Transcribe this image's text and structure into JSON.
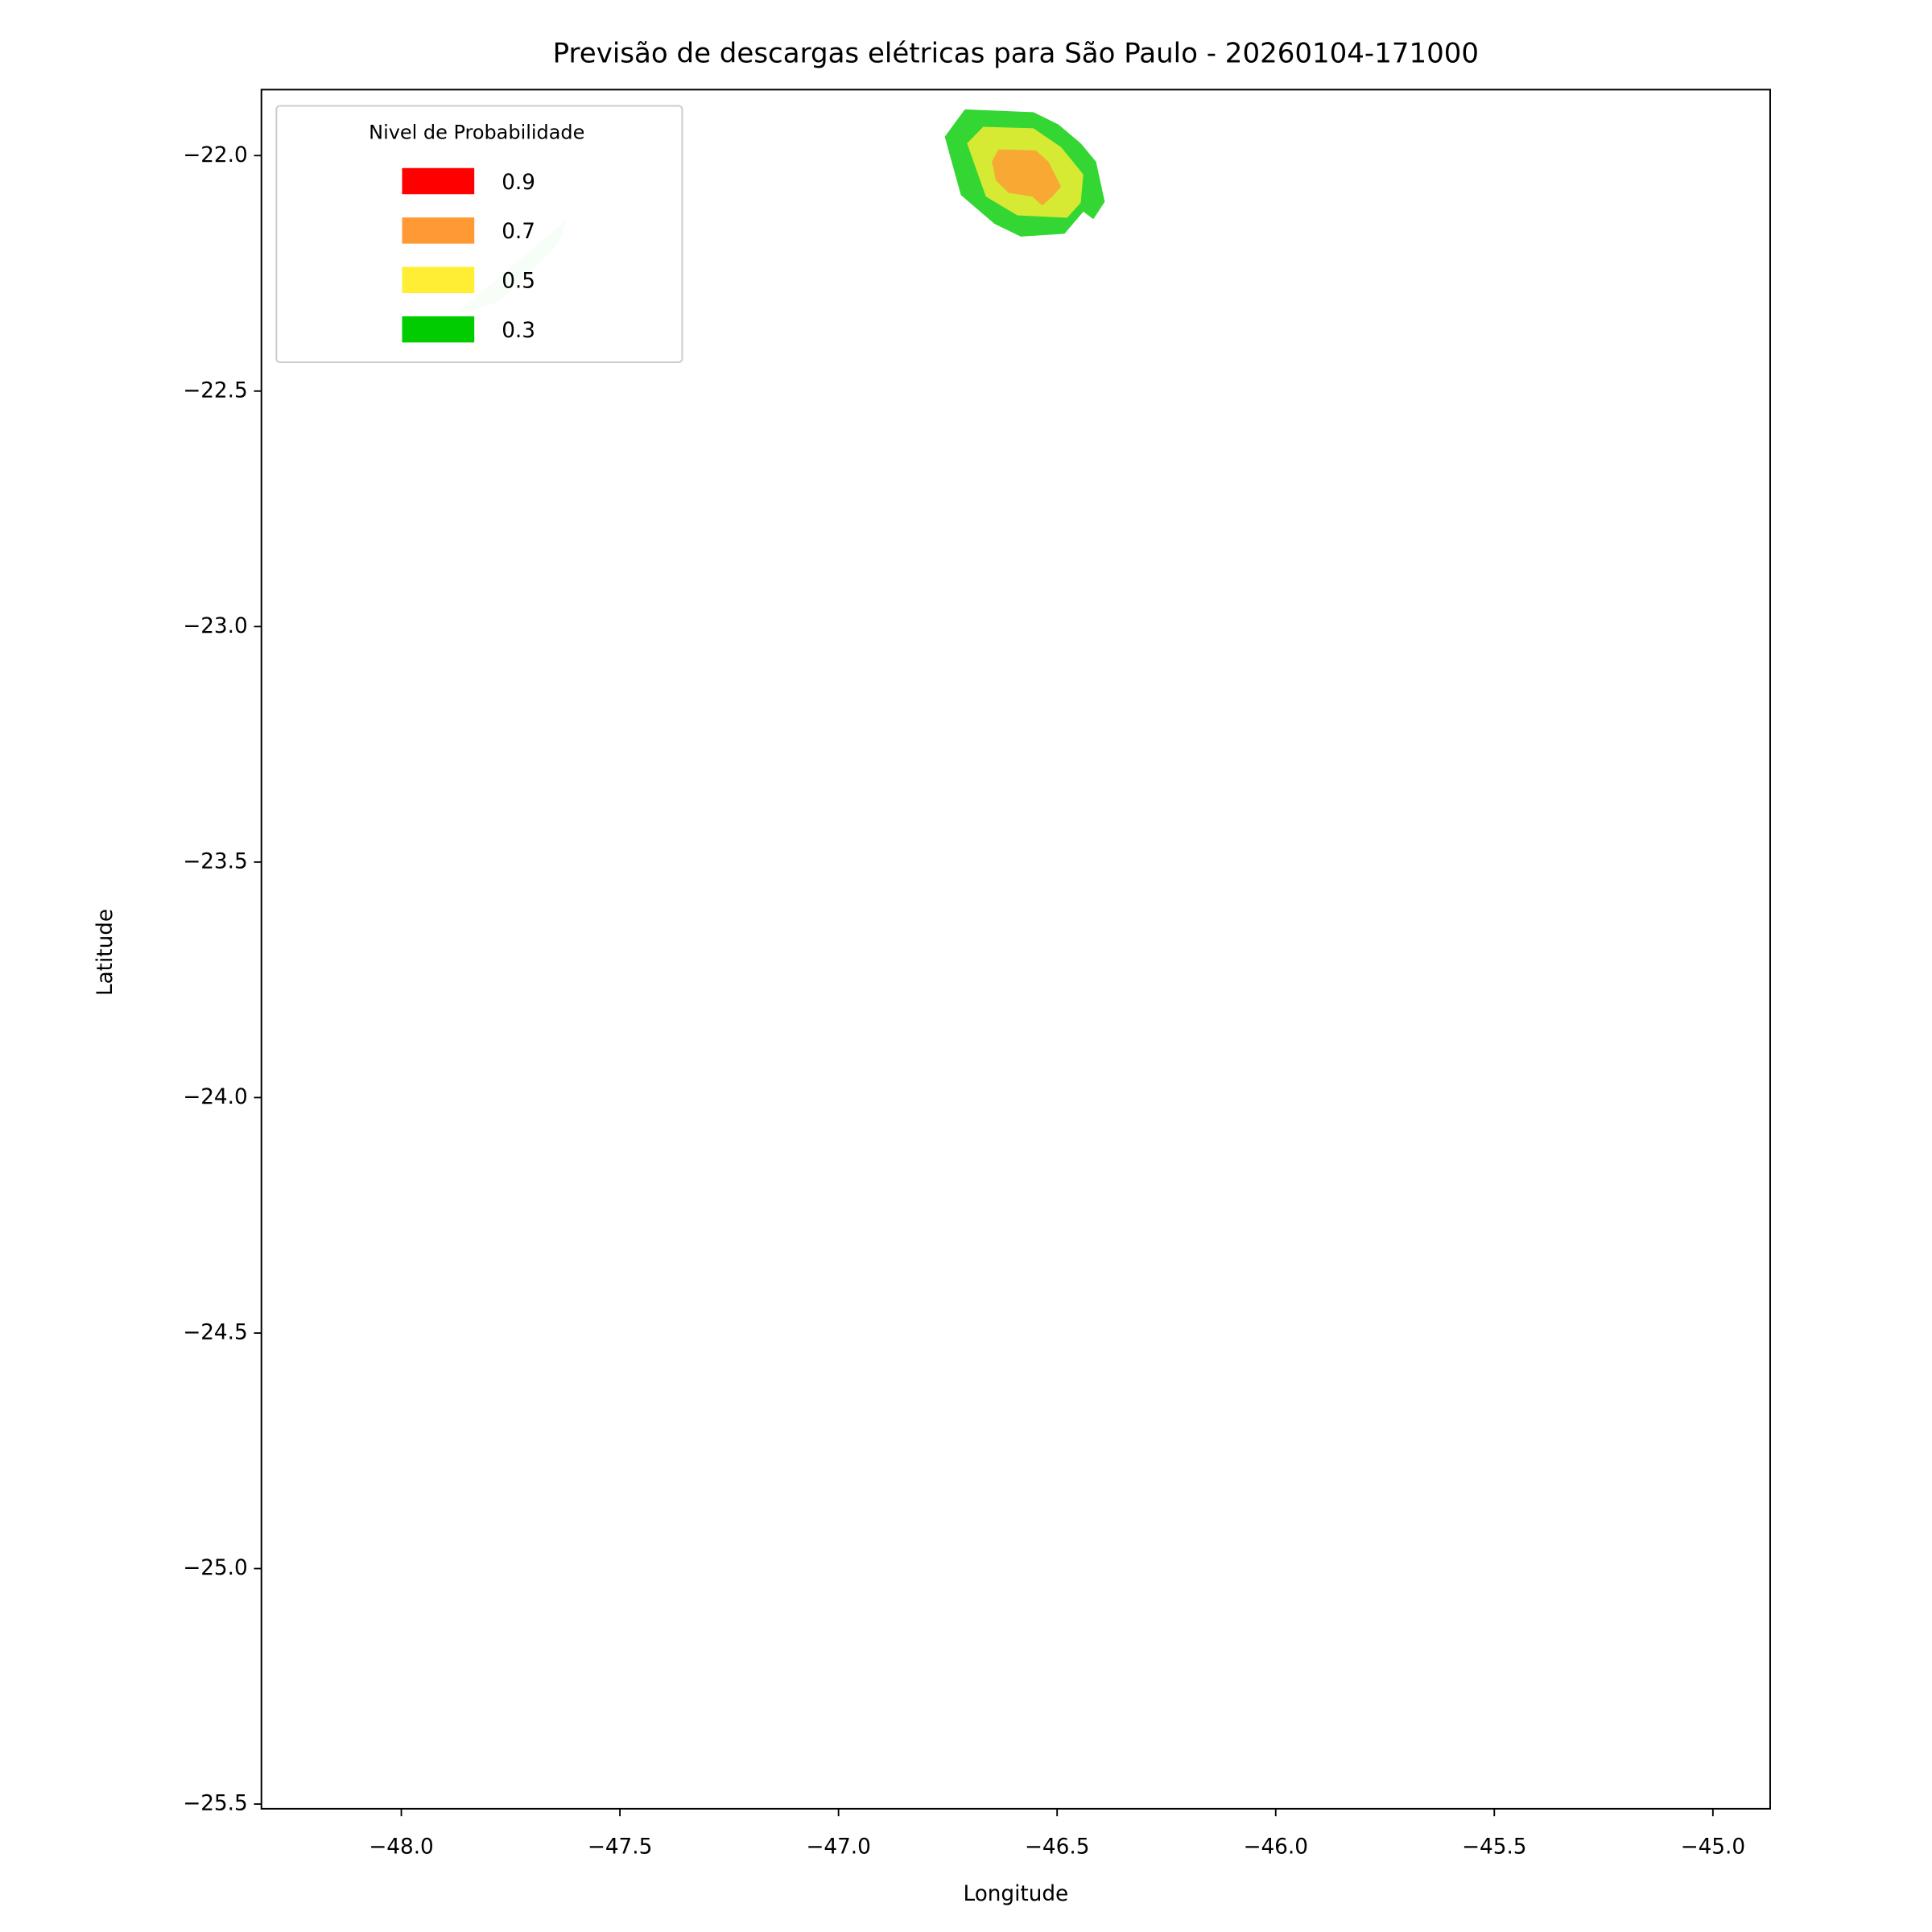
{
  "chart_data": {
    "type": "contourf",
    "title": "Previsão de descargas elétricas para São Paulo - 20260104-171000",
    "xlabel": "Longitude",
    "ylabel": "Latitude",
    "xlim": [
      -48.32,
      -44.869
    ],
    "ylim": [
      -25.51,
      -21.86
    ],
    "xticks": [
      {
        "value": -48.0,
        "label": "−48.0"
      },
      {
        "value": -47.5,
        "label": "−47.5"
      },
      {
        "value": -47.0,
        "label": "−47.0"
      },
      {
        "value": -46.5,
        "label": "−46.5"
      },
      {
        "value": -46.0,
        "label": "−46.0"
      },
      {
        "value": -45.5,
        "label": "−45.5"
      },
      {
        "value": -45.0,
        "label": "−45.0"
      }
    ],
    "yticks": [
      {
        "value": -22.0,
        "label": "−22.0"
      },
      {
        "value": -22.5,
        "label": "−22.5"
      },
      {
        "value": -23.0,
        "label": "−23.0"
      },
      {
        "value": -23.5,
        "label": "−23.5"
      },
      {
        "value": -24.0,
        "label": "−24.0"
      },
      {
        "value": -24.5,
        "label": "−24.5"
      },
      {
        "value": -25.0,
        "label": "−25.0"
      },
      {
        "value": -25.5,
        "label": "−25.5"
      }
    ],
    "alpha": 0.8,
    "legend": {
      "title": "Nivel de Probabilidade",
      "location": "upper left"
    },
    "series": [
      {
        "name": "0.9",
        "color": "#ff0000",
        "polygons": []
      },
      {
        "name": "0.7",
        "color": "#ff9933",
        "polygons": [
          {
            "x": [
              -46.649,
              -46.634,
              -46.549,
              -46.52,
              -46.491,
              -46.511,
              -46.534,
              -46.557,
              -46.611,
              -46.64
            ],
            "y": [
              -22.013,
              -21.987,
              -21.989,
              -22.013,
              -22.066,
              -22.087,
              -22.106,
              -22.087,
              -22.079,
              -22.053
            ]
          }
        ]
      },
      {
        "name": "0.5",
        "color": "#ffee33",
        "polygons": [
          {
            "x": [
              -46.706,
              -46.669,
              -46.554,
              -46.491,
              -46.44,
              -46.446,
              -46.477,
              -46.591,
              -46.663
            ],
            "y": [
              -21.974,
              -21.939,
              -21.942,
              -21.982,
              -22.04,
              -22.1,
              -22.132,
              -22.127,
              -22.087
            ]
          }
        ]
      },
      {
        "name": "0.3",
        "color": "#00cc00",
        "polygons": [
          {
            "x": [
              -46.757,
              -46.711,
              -46.554,
              -46.497,
              -46.446,
              -46.411,
              -46.391,
              -46.417,
              -46.44,
              -46.483,
              -46.583,
              -46.643,
              -46.72
            ],
            "y": [
              -21.96,
              -21.902,
              -21.908,
              -21.934,
              -21.974,
              -22.013,
              -22.098,
              -22.135,
              -22.119,
              -22.166,
              -22.172,
              -22.145,
              -22.084
            ]
          }
        ]
      }
    ],
    "faint_contours": [
      {
        "color": "#00cc00",
        "alpha": 0.17,
        "x": [
          -47.869,
          -47.749,
          -47.62,
          -47.64,
          -47.777,
          -47.84
        ],
        "y": [
          -22.33,
          -22.237,
          -22.135,
          -22.185,
          -22.311,
          -22.33
        ]
      }
    ]
  }
}
